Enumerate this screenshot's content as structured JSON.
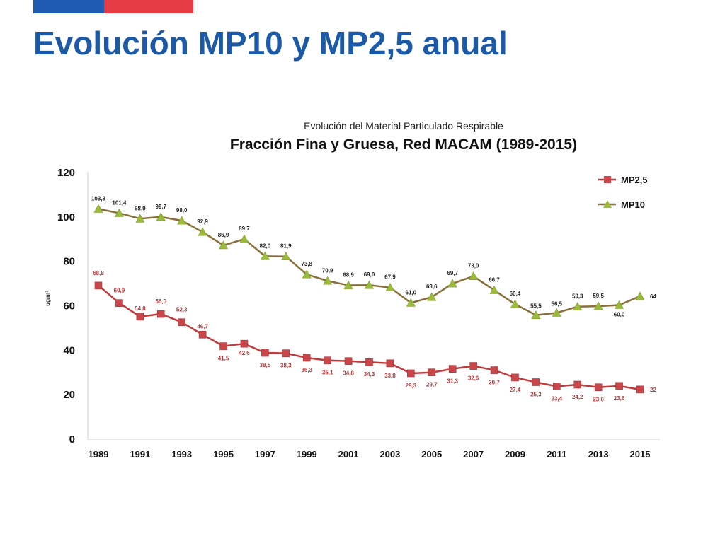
{
  "slide": {
    "title": "Evolución MP10 y MP2,5 anual"
  },
  "colors": {
    "brand_blue": "#1f5bb2",
    "brand_red": "#e63c46",
    "title_blue": "#1c5aa8",
    "mp25_line": "#c0393b",
    "mp25_marker": "#c9474a",
    "mp10_line": "#8a6f3a",
    "mp10_marker": "#9bbb3b"
  },
  "chart_data": {
    "type": "line",
    "subtitle": "Evolución del Material Particulado Respirable",
    "title": "Fracción Fina y Gruesa, Red MACAM (1989-2015)",
    "xlabel": "",
    "ylabel": "ug/m³",
    "ylim": [
      0,
      120
    ],
    "yticks": [
      "0",
      "20",
      "40",
      "60",
      "80",
      "100",
      "120"
    ],
    "x": [
      1989,
      1990,
      1991,
      1992,
      1993,
      1994,
      1995,
      1996,
      1997,
      1998,
      1999,
      2000,
      2001,
      2002,
      2003,
      2004,
      2005,
      2006,
      2007,
      2008,
      2009,
      2010,
      2011,
      2012,
      2013,
      2014,
      2015
    ],
    "xtick_labels": [
      "1989",
      "1991",
      "1993",
      "1995",
      "1997",
      "1999",
      "2001",
      "2003",
      "2005",
      "2007",
      "2009",
      "2011",
      "2013",
      "2015"
    ],
    "grid": false,
    "legend_position": "top-right",
    "series": [
      {
        "name": "MP2,5",
        "marker": "square",
        "values": [
          68.8,
          60.9,
          54.8,
          56.0,
          52.3,
          46.7,
          41.5,
          42.6,
          38.5,
          38.3,
          36.3,
          35.1,
          34.8,
          34.3,
          33.8,
          29.3,
          29.7,
          31.3,
          32.6,
          30.7,
          27.4,
          25.3,
          23.4,
          24.2,
          23.0,
          23.6,
          22
        ],
        "labels": [
          "68,8",
          "60,9",
          "54,8",
          "56,0",
          "52,3",
          "46,7",
          "41,5",
          "42,6",
          "38,5",
          "38,3",
          "36,3",
          "35,1",
          "34,8",
          "34,3",
          "33,8",
          "29,3",
          "29,7",
          "31,3",
          "32,6",
          "30,7",
          "27,4",
          "25,3",
          "23,4",
          "24,2",
          "23,0",
          "23,6",
          "22"
        ]
      },
      {
        "name": "MP10",
        "marker": "triangle",
        "values": [
          103.3,
          101.4,
          98.9,
          99.7,
          98.0,
          92.9,
          86.9,
          89.7,
          82.0,
          81.9,
          73.8,
          70.9,
          68.9,
          69.0,
          67.9,
          61.0,
          63.6,
          69.7,
          73.0,
          66.7,
          60.4,
          55.5,
          56.5,
          59.3,
          59.5,
          60.0,
          64
        ],
        "labels": [
          "103,3",
          "101,4",
          "98,9",
          "99,7",
          "98,0",
          "92,9",
          "86,9",
          "89,7",
          "82,0",
          "81,9",
          "73,8",
          "70,9",
          "68,9",
          "69,0",
          "67,9",
          "61,0",
          "63,6",
          "69,7",
          "73,0",
          "66,7",
          "60,4",
          "55,5",
          "56,5",
          "59,3",
          "59,5",
          "60,0",
          "64"
        ]
      }
    ]
  }
}
